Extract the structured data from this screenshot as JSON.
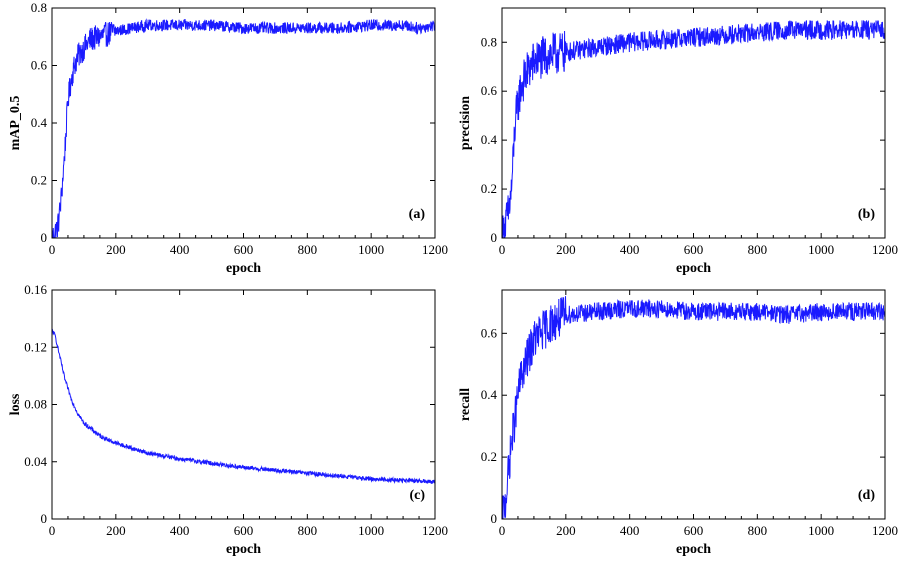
{
  "chart_data": [
    {
      "type": "line",
      "panel": "(a)",
      "xlabel": "epoch",
      "ylabel": "mAP_0.5",
      "xlim": [
        0,
        1200
      ],
      "ylim": [
        0,
        0.8
      ],
      "xticks": [
        0,
        200,
        400,
        600,
        800,
        1000,
        1200
      ],
      "yticks": [
        0,
        0.2,
        0.4,
        0.6,
        0.8
      ],
      "yticklabels": [
        "0",
        "0.2",
        "0.4",
        "0.6",
        "0.8"
      ],
      "color": "#1a1aff",
      "x": [
        0,
        10,
        20,
        30,
        40,
        50,
        60,
        70,
        80,
        100,
        120,
        150,
        200,
        250,
        300,
        400,
        500,
        600,
        700,
        800,
        900,
        1000,
        1050,
        1100,
        1150,
        1200
      ],
      "y": [
        0.0,
        0.02,
        0.05,
        0.15,
        0.3,
        0.48,
        0.55,
        0.6,
        0.63,
        0.66,
        0.69,
        0.7,
        0.72,
        0.73,
        0.74,
        0.74,
        0.74,
        0.73,
        0.73,
        0.73,
        0.73,
        0.74,
        0.74,
        0.74,
        0.73,
        0.74
      ],
      "noise": 0.02
    },
    {
      "type": "line",
      "panel": "(b)",
      "xlabel": "epoch",
      "ylabel": "precision",
      "xlim": [
        0,
        1200
      ],
      "ylim": [
        0,
        0.94
      ],
      "xticks": [
        0,
        200,
        400,
        600,
        800,
        1000,
        1200
      ],
      "yticks": [
        0,
        0.2,
        0.4,
        0.6,
        0.8
      ],
      "yticklabels": [
        "0",
        "0.2",
        "0.4",
        "0.6",
        "0.8"
      ],
      "color": "#1a1aff",
      "x": [
        0,
        10,
        20,
        30,
        40,
        50,
        60,
        80,
        100,
        150,
        200,
        300,
        400,
        500,
        600,
        700,
        800,
        900,
        1000,
        1100,
        1200
      ],
      "y": [
        0.0,
        0.05,
        0.1,
        0.2,
        0.45,
        0.55,
        0.62,
        0.68,
        0.72,
        0.75,
        0.76,
        0.78,
        0.8,
        0.81,
        0.82,
        0.83,
        0.84,
        0.85,
        0.85,
        0.85,
        0.85
      ],
      "noise": 0.04
    },
    {
      "type": "line",
      "panel": "(c)",
      "xlabel": "epoch",
      "ylabel": "loss",
      "xlim": [
        0,
        1200
      ],
      "ylim": [
        0,
        0.16
      ],
      "xticks": [
        0,
        200,
        400,
        600,
        800,
        1000,
        1200
      ],
      "yticks": [
        0,
        0.04,
        0.08,
        0.12,
        0.16
      ],
      "yticklabels": [
        "0",
        "0.04",
        "0.08",
        "0.12",
        "0.16"
      ],
      "color": "#1a1aff",
      "x": [
        0,
        10,
        20,
        40,
        60,
        80,
        100,
        150,
        200,
        300,
        400,
        500,
        600,
        700,
        800,
        900,
        1000,
        1100,
        1200
      ],
      "y": [
        0.132,
        0.128,
        0.118,
        0.098,
        0.084,
        0.074,
        0.067,
        0.058,
        0.053,
        0.046,
        0.042,
        0.039,
        0.036,
        0.034,
        0.032,
        0.03,
        0.028,
        0.027,
        0.026
      ],
      "noise": 0.0015
    },
    {
      "type": "line",
      "panel": "(d)",
      "xlabel": "epoch",
      "ylabel": "recall",
      "xlim": [
        0,
        1200
      ],
      "ylim": [
        0,
        0.74
      ],
      "xticks": [
        0,
        200,
        400,
        600,
        800,
        1000,
        1200
      ],
      "yticks": [
        0,
        0.2,
        0.4,
        0.6
      ],
      "yticklabels": [
        "0",
        "0.2",
        "0.4",
        "0.6"
      ],
      "color": "#1a1aff",
      "x": [
        0,
        10,
        20,
        30,
        40,
        50,
        60,
        80,
        100,
        150,
        200,
        300,
        400,
        500,
        600,
        700,
        800,
        900,
        1000,
        1100,
        1200
      ],
      "y": [
        0.0,
        0.05,
        0.15,
        0.25,
        0.32,
        0.4,
        0.46,
        0.52,
        0.58,
        0.63,
        0.66,
        0.67,
        0.68,
        0.68,
        0.67,
        0.67,
        0.67,
        0.66,
        0.67,
        0.67,
        0.67
      ],
      "noise": 0.03
    }
  ]
}
